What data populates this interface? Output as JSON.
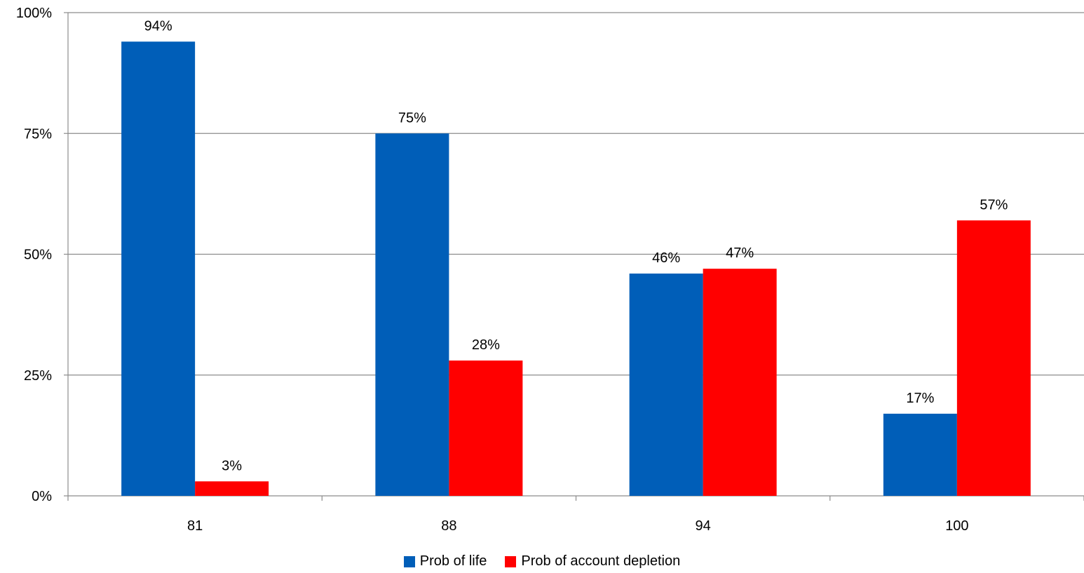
{
  "chart_data": {
    "type": "bar",
    "title": "",
    "xlabel": "",
    "ylabel": "",
    "categories": [
      "81",
      "88",
      "94",
      "100"
    ],
    "series": [
      {
        "name": "Prob of life",
        "color": "#005EB8",
        "values": [
          94,
          75,
          46,
          17
        ],
        "labels": [
          "94%",
          "75%",
          "46%",
          "17%"
        ]
      },
      {
        "name": "Prob of account depletion",
        "color": "#FF0000",
        "values": [
          3,
          28,
          47,
          57
        ],
        "labels": [
          "3%",
          "28%",
          "47%",
          "57%"
        ]
      }
    ],
    "ylim": [
      0,
      100
    ],
    "yticks": [
      0,
      25,
      50,
      75,
      100
    ],
    "ytick_labels": [
      "0%",
      "25%",
      "50%",
      "75%",
      "100%"
    ],
    "grid": true,
    "legend_position": "bottom"
  }
}
